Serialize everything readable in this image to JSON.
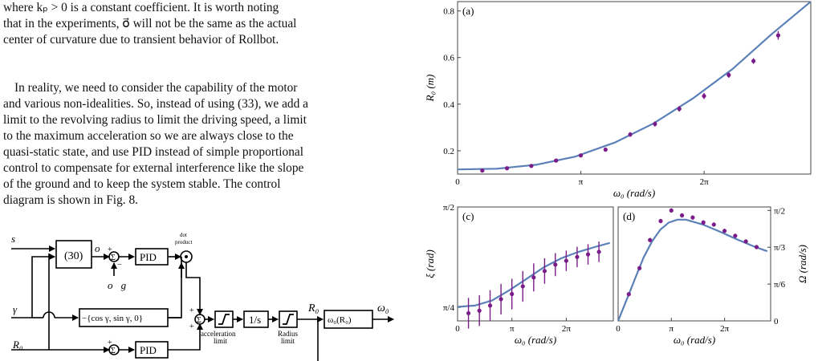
{
  "text": {
    "p1": [
      "where kₚ > 0 is a constant coefficient. It is worth noting",
      "that in the experiments, o⃗ will not be the same as the actual",
      "center of curvature due to transient behavior of Rollbot."
    ],
    "p2": [
      "In reality, we need to consider the capability of the motor",
      "and various non-idealities. So, instead of using (33), we add a",
      "limit to the revolving radius to limit the driving speed, a limit",
      "to the maximum acceleration so we are always close to the",
      "quasi-static state, and use PID instead of simple proportional",
      "control to compensate for external interference like the slope",
      "of the ground and to keep the system stable. The control",
      "diagram is shown in Fig. 8."
    ]
  },
  "diagram": {
    "input_s": "s⃗",
    "input_gamma": "γ",
    "input_R0": "R₀",
    "block_30": "(30)",
    "o_vec": "o⃗",
    "o_g": "o⃗g",
    "pid": "PID",
    "dot_product": [
      "dot",
      "product"
    ],
    "cos_block": "−{cos γ, sin γ, 0}",
    "sigma": "Σ",
    "integrator": "1/s",
    "accel_limit": [
      "acceleration",
      "limit"
    ],
    "radius_limit": [
      "Radius",
      "limit"
    ],
    "R0_out": "R₀",
    "omega_block": "ω₀(R₀)",
    "omega_out": "ω₀",
    "plus": "+",
    "minus": "−"
  },
  "chart_data": [
    {
      "panel": "(a)",
      "type": "scatter",
      "xlabel": "ω₀ (rad/s)",
      "ylabel": "R₀ (m)",
      "xlim": [
        0,
        7.6
      ],
      "ylim": [
        0.1,
        0.84
      ],
      "xticks": [
        {
          "v": 0,
          "label": "0"
        },
        {
          "v": 3.1416,
          "label": "π"
        },
        {
          "v": 6.2832,
          "label": "2π"
        }
      ],
      "yticks": [
        {
          "v": 0.2,
          "label": "0.2"
        },
        {
          "v": 0.4,
          "label": "0.4"
        },
        {
          "v": 0.6,
          "label": "0.6"
        },
        {
          "v": 0.8,
          "label": "0.8"
        }
      ],
      "points": [
        {
          "x": 0.63,
          "y": 0.115,
          "e": 0.006
        },
        {
          "x": 1.26,
          "y": 0.125,
          "e": 0.006
        },
        {
          "x": 1.88,
          "y": 0.135,
          "e": 0.006
        },
        {
          "x": 2.51,
          "y": 0.158,
          "e": 0.007
        },
        {
          "x": 3.14,
          "y": 0.18,
          "e": 0.008
        },
        {
          "x": 3.77,
          "y": 0.205,
          "e": 0.009
        },
        {
          "x": 4.4,
          "y": 0.27,
          "e": 0.01
        },
        {
          "x": 5.03,
          "y": 0.315,
          "e": 0.011
        },
        {
          "x": 5.65,
          "y": 0.38,
          "e": 0.012
        },
        {
          "x": 6.28,
          "y": 0.435,
          "e": 0.013
        },
        {
          "x": 6.91,
          "y": 0.525,
          "e": 0.012
        },
        {
          "x": 7.54,
          "y": 0.585,
          "e": 0.012
        },
        {
          "x": 8.17,
          "y": 0.695,
          "e": 0.018
        }
      ],
      "curve": [
        {
          "x": 0,
          "y": 0.12
        },
        {
          "x": 1,
          "y": 0.123
        },
        {
          "x": 2,
          "y": 0.14
        },
        {
          "x": 3,
          "y": 0.175
        },
        {
          "x": 4,
          "y": 0.235
        },
        {
          "x": 5,
          "y": 0.318
        },
        {
          "x": 6,
          "y": 0.425
        },
        {
          "x": 7,
          "y": 0.55
        },
        {
          "x": 8,
          "y": 0.7
        },
        {
          "x": 9,
          "y": 0.84
        }
      ]
    },
    {
      "panel": "(c)",
      "type": "scatter",
      "xlabel": "ω₀ (rad/s)",
      "ylabel": "ξ (rad)",
      "xticks": [
        {
          "v": 0,
          "label": "0"
        },
        {
          "v": 3.1416,
          "label": "π"
        },
        {
          "v": 6.2832,
          "label": "2π"
        }
      ],
      "yticks": [
        {
          "v": 0.7854,
          "label": "π/4"
        },
        {
          "v": 1.5708,
          "label": "π/2"
        }
      ],
      "points": [
        {
          "x": 0.63,
          "y": 0.74,
          "e": 0.12
        },
        {
          "x": 1.26,
          "y": 0.76,
          "e": 0.12
        },
        {
          "x": 1.88,
          "y": 0.8,
          "e": 0.12
        },
        {
          "x": 2.51,
          "y": 0.85,
          "e": 0.12
        },
        {
          "x": 3.14,
          "y": 0.89,
          "e": 0.12
        },
        {
          "x": 3.77,
          "y": 0.95,
          "e": 0.12
        },
        {
          "x": 4.4,
          "y": 1.02,
          "e": 0.11
        },
        {
          "x": 5.03,
          "y": 1.07,
          "e": 0.1
        },
        {
          "x": 5.65,
          "y": 1.12,
          "e": 0.09
        },
        {
          "x": 6.28,
          "y": 1.15,
          "e": 0.08
        },
        {
          "x": 6.91,
          "y": 1.18,
          "e": 0.08
        },
        {
          "x": 7.54,
          "y": 1.2,
          "e": 0.08
        },
        {
          "x": 8.17,
          "y": 1.22,
          "e": 0.08
        }
      ],
      "curve": [
        {
          "x": 0,
          "y": 0.79
        },
        {
          "x": 1,
          "y": 0.8
        },
        {
          "x": 2,
          "y": 0.84
        },
        {
          "x": 3,
          "y": 0.92
        },
        {
          "x": 4,
          "y": 1.01
        },
        {
          "x": 5,
          "y": 1.1
        },
        {
          "x": 6,
          "y": 1.17
        },
        {
          "x": 7,
          "y": 1.22
        },
        {
          "x": 8,
          "y": 1.26
        },
        {
          "x": 8.8,
          "y": 1.29
        }
      ]
    },
    {
      "panel": "(d)",
      "type": "scatter",
      "xlabel": "ω₀ (rad/s)",
      "ylabel": "Ω (rad/s)",
      "xticks": [
        {
          "v": 0,
          "label": "0"
        },
        {
          "v": 3.1416,
          "label": "π"
        },
        {
          "v": 6.2832,
          "label": "2π"
        }
      ],
      "yticks": [
        {
          "v": 0,
          "label": "0"
        },
        {
          "v": 0.5236,
          "label": "π/6"
        },
        {
          "v": 1.0472,
          "label": "π/3"
        },
        {
          "v": 1.5708,
          "label": "π/2"
        }
      ],
      "points": [
        {
          "x": 0.63,
          "y": 0.38,
          "e": 0.03
        },
        {
          "x": 1.26,
          "y": 0.75,
          "e": 0.03
        },
        {
          "x": 1.88,
          "y": 1.15,
          "e": 0.03
        },
        {
          "x": 2.51,
          "y": 1.42,
          "e": 0.03
        },
        {
          "x": 3.14,
          "y": 1.57,
          "e": 0.03
        },
        {
          "x": 3.77,
          "y": 1.5,
          "e": 0.03
        },
        {
          "x": 4.4,
          "y": 1.47,
          "e": 0.03
        },
        {
          "x": 5.03,
          "y": 1.4,
          "e": 0.03
        },
        {
          "x": 5.65,
          "y": 1.37,
          "e": 0.03
        },
        {
          "x": 6.28,
          "y": 1.28,
          "e": 0.03
        },
        {
          "x": 6.91,
          "y": 1.21,
          "e": 0.03
        },
        {
          "x": 7.54,
          "y": 1.13,
          "e": 0.03
        },
        {
          "x": 8.17,
          "y": 1.05,
          "e": 0.03
        }
      ],
      "curve": [
        {
          "x": 0,
          "y": 0.0
        },
        {
          "x": 0.5,
          "y": 0.3
        },
        {
          "x": 1,
          "y": 0.6
        },
        {
          "x": 1.5,
          "y": 0.9
        },
        {
          "x": 2,
          "y": 1.13
        },
        {
          "x": 2.5,
          "y": 1.3
        },
        {
          "x": 3,
          "y": 1.4
        },
        {
          "x": 3.5,
          "y": 1.44
        },
        {
          "x": 4,
          "y": 1.44
        },
        {
          "x": 5,
          "y": 1.37
        },
        {
          "x": 6,
          "y": 1.27
        },
        {
          "x": 7,
          "y": 1.16
        },
        {
          "x": 8,
          "y": 1.06
        },
        {
          "x": 8.8,
          "y": 0.99
        }
      ]
    }
  ],
  "colors": {
    "curve": "#5b80b8",
    "points": "#7a1d8a",
    "axis": "#333333"
  }
}
